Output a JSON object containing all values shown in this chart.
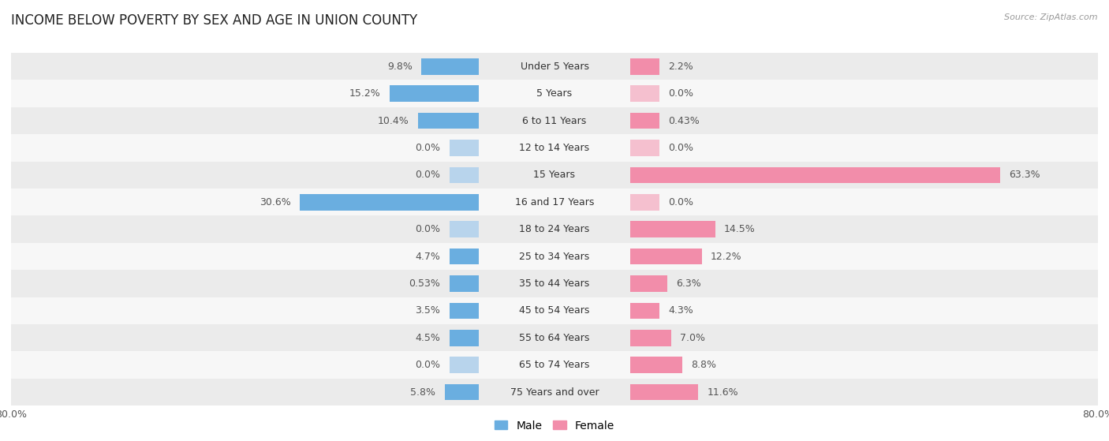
{
  "title": "INCOME BELOW POVERTY BY SEX AND AGE IN UNION COUNTY",
  "source": "Source: ZipAtlas.com",
  "categories": [
    "Under 5 Years",
    "5 Years",
    "6 to 11 Years",
    "12 to 14 Years",
    "15 Years",
    "16 and 17 Years",
    "18 to 24 Years",
    "25 to 34 Years",
    "35 to 44 Years",
    "45 to 54 Years",
    "55 to 64 Years",
    "65 to 74 Years",
    "75 Years and over"
  ],
  "male": [
    9.8,
    15.2,
    10.4,
    0.0,
    0.0,
    30.6,
    0.0,
    4.7,
    0.53,
    3.5,
    4.5,
    0.0,
    5.8
  ],
  "female": [
    2.2,
    0.0,
    0.43,
    0.0,
    63.3,
    0.0,
    14.5,
    12.2,
    6.3,
    4.3,
    7.0,
    8.8,
    11.6
  ],
  "male_labels": [
    "9.8%",
    "15.2%",
    "10.4%",
    "0.0%",
    "0.0%",
    "30.6%",
    "0.0%",
    "4.7%",
    "0.53%",
    "3.5%",
    "4.5%",
    "0.0%",
    "5.8%"
  ],
  "female_labels": [
    "2.2%",
    "0.0%",
    "0.43%",
    "0.0%",
    "63.3%",
    "0.0%",
    "14.5%",
    "12.2%",
    "6.3%",
    "4.3%",
    "7.0%",
    "8.8%",
    "11.6%"
  ],
  "male_color_dark": "#6aaee0",
  "male_color_light": "#b8d4ec",
  "female_color_dark": "#f28daa",
  "female_color_light": "#f5c0cf",
  "xlim": 80.0,
  "min_bar": 5.0,
  "bar_height": 0.6,
  "row_bg_odd": "#ebebeb",
  "row_bg_even": "#f7f7f7",
  "title_fontsize": 12,
  "label_fontsize": 9,
  "cat_fontsize": 9,
  "axis_label_fontsize": 9,
  "legend_fontsize": 10
}
